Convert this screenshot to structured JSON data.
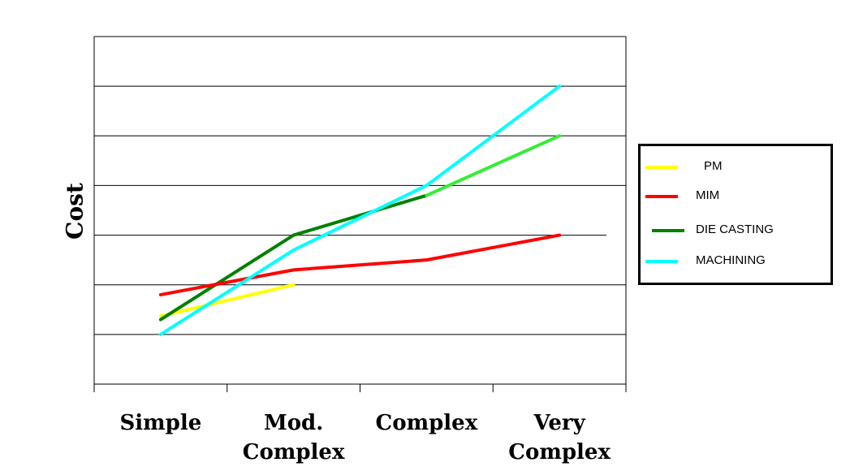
{
  "chart_data": {
    "type": "line",
    "categories": [
      "Simple",
      "Mod. Complex",
      "Complex",
      "Very Complex"
    ],
    "category_lines": [
      [
        "Simple"
      ],
      [
        "Mod.",
        "Complex"
      ],
      [
        "Complex"
      ],
      [
        "Very",
        "Complex"
      ]
    ],
    "ylabel": "Cost",
    "xlabel": "",
    "title": "",
    "ylim": [
      0,
      7
    ],
    "y_gridlines": 7,
    "grid": true,
    "y_tick_labels": false,
    "legend_position": "right",
    "series": [
      {
        "name": "PM",
        "color": "#ffff00",
        "values": [
          1.37,
          2.0,
          null,
          null
        ]
      },
      {
        "name": "MIM",
        "color": "#ff0000",
        "values": [
          1.8,
          2.3,
          2.5,
          3.0
        ]
      },
      {
        "name": "DIE CASTING",
        "color": "#008000",
        "values": [
          1.3,
          3.0,
          3.8,
          5.0
        ],
        "segment_colors": [
          "#008000",
          "#008000",
          "#33ee33"
        ]
      },
      {
        "name": "MACHINING",
        "color": "#00ffff",
        "values": [
          1.0,
          2.7,
          4.0,
          6.0
        ]
      }
    ]
  }
}
